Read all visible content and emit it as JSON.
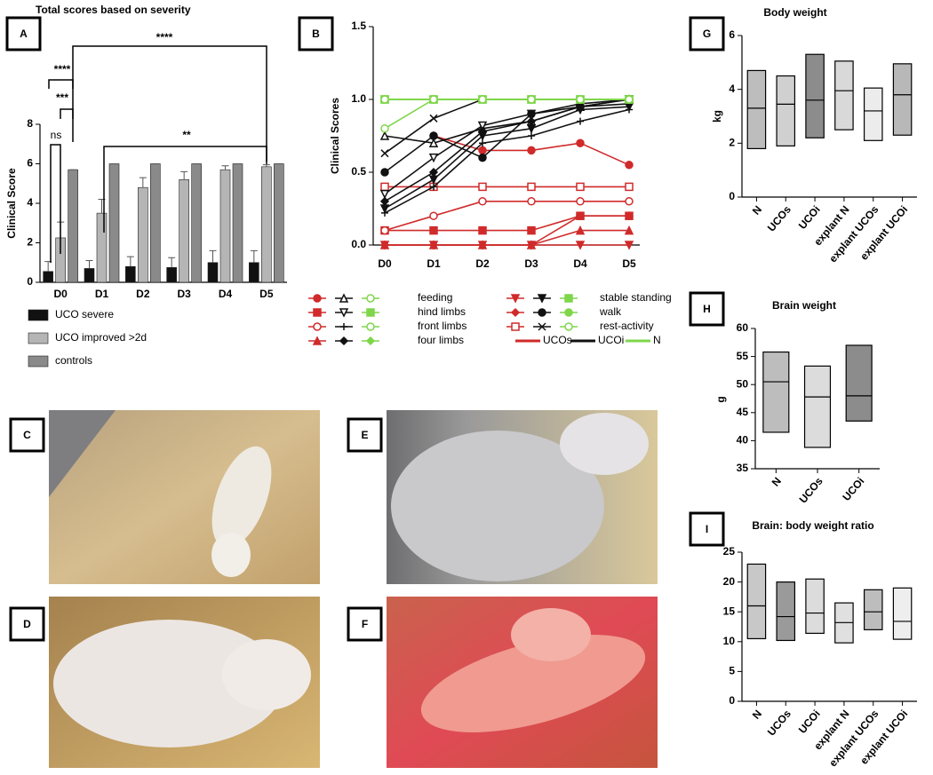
{
  "chart_data": [
    {
      "type": "grouped-bar",
      "label": "A",
      "title": "Total scores based on severity",
      "y_label": "Clinical Score",
      "categories": [
        "D0",
        "D1",
        "D2",
        "D3",
        "D4",
        "D5"
      ],
      "series": [
        {
          "name": "UCO severe",
          "color": "#111111",
          "values": [
            0.55,
            0.7,
            0.8,
            0.75,
            1.0,
            1.0
          ],
          "errors": [
            0.5,
            0.4,
            0.5,
            0.5,
            0.6,
            0.6
          ]
        },
        {
          "name": "UCO improved >2d",
          "color": "#b5b5b5",
          "values": [
            2.25,
            3.5,
            4.8,
            5.2,
            5.7,
            5.85
          ],
          "errors": [
            0.8,
            0.7,
            0.5,
            0.4,
            0.2,
            0.1
          ]
        },
        {
          "name": "controls",
          "color": "#8a8a8a",
          "values": [
            5.7,
            6,
            6,
            6,
            6,
            6
          ],
          "errors": [
            0,
            0,
            0,
            0,
            0,
            0
          ]
        }
      ],
      "ylim": [
        0,
        8
      ],
      "yticks": [
        0,
        2,
        4,
        6,
        8
      ],
      "annotations": [
        {
          "text": "ns"
        },
        {
          "text": "****"
        },
        {
          "text": "***"
        },
        {
          "text": "****"
        },
        {
          "text": "**"
        }
      ]
    },
    {
      "type": "line",
      "label": "B",
      "y_label": "Clinical Scores",
      "categories": [
        "D0",
        "D1",
        "D2",
        "D3",
        "D4",
        "D5"
      ],
      "ylim": [
        0,
        1.5
      ],
      "yticks": [
        {
          "value": 0,
          "label": "0.0"
        },
        0.5,
        {
          "value": 1,
          "label": "1.0"
        },
        1.5
      ],
      "legend": [
        "feeding",
        "hind limbs",
        "front limbs",
        "four limbs",
        "stable standing",
        "walk",
        "rest-activity"
      ],
      "groups": [
        {
          "name": "UCOs",
          "color": "#d02a2a",
          "series": [
            {
              "marker": "circle",
              "values": [
                null,
                0.75,
                0.65,
                0.65,
                0.7,
                0.55
              ]
            },
            {
              "marker": "square",
              "values": [
                0.1,
                0.1,
                0.1,
                0.1,
                0.2,
                0.2
              ]
            },
            {
              "marker": "circle-open",
              "values": [
                0.1,
                0.2,
                0.3,
                0.3,
                0.3,
                0.3
              ]
            },
            {
              "marker": "triangle",
              "values": [
                0,
                0,
                0,
                0,
                0.1,
                0.1
              ]
            },
            {
              "marker": "triangle-down",
              "values": [
                0,
                0,
                0,
                0,
                0,
                0
              ]
            },
            {
              "marker": "diamond",
              "values": [
                0,
                0,
                0,
                0,
                0.2,
                0.2
              ]
            },
            {
              "marker": "square-open",
              "values": [
                0.4,
                0.4,
                0.4,
                0.4,
                0.4,
                0.4
              ]
            }
          ]
        },
        {
          "name": "UCOi",
          "color": "#111111",
          "series": [
            {
              "marker": "triangle-open",
              "values": [
                0.75,
                0.7,
                0.8,
                0.85,
                0.95,
                1
              ]
            },
            {
              "marker": "triangle-down-open",
              "values": [
                0.35,
                0.6,
                0.82,
                0.9,
                0.97,
                1
              ]
            },
            {
              "marker": "plus",
              "values": [
                0.22,
                0.4,
                0.7,
                0.75,
                0.85,
                0.93
              ]
            },
            {
              "marker": "diamond",
              "values": [
                0.3,
                0.5,
                0.78,
                0.85,
                0.95,
                0.97
              ]
            },
            {
              "marker": "triangle-down",
              "values": [
                0.25,
                0.45,
                0.75,
                0.8,
                0.93,
                0.95
              ]
            },
            {
              "marker": "circle",
              "values": [
                0.5,
                0.75,
                0.6,
                0.9,
                0.95,
                1
              ]
            },
            {
              "marker": "x",
              "values": [
                0.63,
                0.87,
                1,
                1,
                1,
                1
              ]
            }
          ]
        },
        {
          "name": "N",
          "color": "#7fd64a",
          "series": [
            {
              "marker": "circle-open",
              "values": [
                1,
                1,
                1,
                1,
                1,
                1
              ]
            },
            {
              "marker": "square",
              "values": [
                1,
                1,
                1,
                1,
                1,
                1
              ]
            },
            {
              "marker": "circle-open",
              "values": [
                0.8,
                1,
                1,
                1,
                1,
                1
              ]
            },
            {
              "marker": "diamond",
              "values": [
                1,
                1,
                1,
                1,
                1,
                1
              ]
            },
            {
              "marker": "square",
              "values": [
                1,
                1,
                1,
                1,
                1,
                1
              ]
            },
            {
              "marker": "circle",
              "values": [
                1,
                1,
                1,
                1,
                1,
                1
              ]
            },
            {
              "marker": "circle-open",
              "values": [
                1,
                1,
                1,
                1,
                1,
                1
              ]
            }
          ]
        }
      ]
    },
    {
      "type": "floating-bar",
      "label": "G",
      "title": "Body weight",
      "y_label": "kg",
      "categories": [
        "N",
        "UCOs",
        "UCOi",
        "explant N",
        "explant UCOs",
        "explant UCOi"
      ],
      "low": [
        1.8,
        1.9,
        2.2,
        2.5,
        2.1,
        2.3
      ],
      "high": [
        4.7,
        4.5,
        5.3,
        5.05,
        4.05,
        4.95
      ],
      "median": [
        3.3,
        3.45,
        3.6,
        3.95,
        3.2,
        3.8
      ],
      "colors": [
        "#bdbdbd",
        "#d0d0d0",
        "#8c8c8c",
        "#d9d9d9",
        "#ececec",
        "#b8b8b8"
      ],
      "ylim": [
        0,
        6
      ],
      "yticks": [
        0,
        2,
        4,
        6
      ]
    },
    {
      "type": "floating-bar",
      "label": "H",
      "title": "Brain weight",
      "y_label": "g",
      "categories": [
        "N",
        "UCOs",
        "UCOi"
      ],
      "low": [
        41.5,
        38.8,
        43.5
      ],
      "high": [
        55.8,
        53.3,
        57
      ],
      "median": [
        50.5,
        47.8,
        48
      ],
      "colors": [
        "#bdbdbd",
        "#dcdcdc",
        "#8c8c8c"
      ],
      "ylim": [
        35,
        60
      ],
      "yticks": [
        35,
        40,
        45,
        50,
        55,
        60
      ]
    },
    {
      "type": "floating-bar",
      "label": "I",
      "title": "Brain: body weight ratio",
      "categories": [
        "N",
        "UCOs",
        "UCOi",
        "explant N",
        "explant UCOs",
        "explant UCOi"
      ],
      "low": [
        10.5,
        10.2,
        11.4,
        9.8,
        12,
        10.4
      ],
      "high": [
        23,
        20,
        20.5,
        16.5,
        18.7,
        19
      ],
      "median": [
        16,
        14.2,
        14.8,
        13.2,
        15,
        13.4
      ],
      "colors": [
        "#c8c8c8",
        "#9a9a9a",
        "#dcdcdc",
        "#e0e0e0",
        "#bdbdbd",
        "#eeeeee"
      ],
      "ylim": [
        0,
        25
      ],
      "yticks": [
        0,
        5,
        10,
        15,
        20,
        25
      ]
    }
  ],
  "photos": [
    {
      "label": "C"
    },
    {
      "label": "D"
    },
    {
      "label": "E"
    },
    {
      "label": "F"
    }
  ]
}
